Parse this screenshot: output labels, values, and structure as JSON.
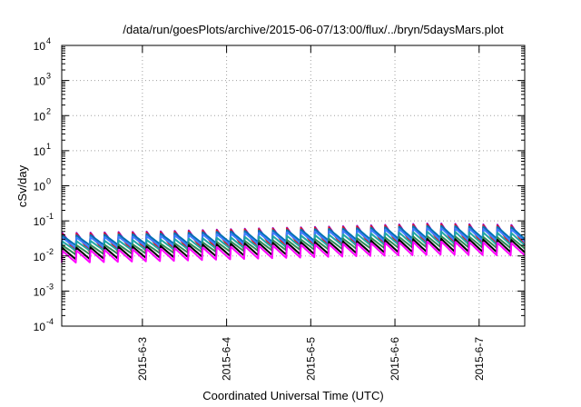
{
  "chart_data": {
    "type": "line",
    "title": "/data/run/goesPlots/archive/2015-06-07/13:00/flux/../bryn/5daysMars.plot",
    "xlabel": "Coordinated Universal Time (UTC)",
    "ylabel": "cSv/day",
    "yscale": "log",
    "ylim": [
      0.0001,
      10000
    ],
    "xlim": [
      "2015-06-02 01:00",
      "2015-06-07 13:00"
    ],
    "grid": true,
    "legend": "none",
    "y_ticks": [
      {
        "base": "10",
        "exp": "-4"
      },
      {
        "base": "10",
        "exp": "-3"
      },
      {
        "base": "10",
        "exp": "-2"
      },
      {
        "base": "10",
        "exp": "-1"
      },
      {
        "base": "10",
        "exp": "0"
      },
      {
        "base": "10",
        "exp": "1"
      },
      {
        "base": "10",
        "exp": "2"
      },
      {
        "base": "10",
        "exp": "3"
      },
      {
        "base": "10",
        "exp": "4"
      }
    ],
    "x_ticks": [
      {
        "label": "2015-6-3",
        "value": "2015-06-03 00:00"
      },
      {
        "label": "2015-6-4",
        "value": "2015-06-04 00:00"
      },
      {
        "label": "2015-6-5",
        "value": "2015-06-05 00:00"
      },
      {
        "label": "2015-6-6",
        "value": "2015-06-06 00:00"
      },
      {
        "label": "2015-6-7",
        "value": "2015-06-07 00:00"
      }
    ],
    "cycle_hours": 4,
    "series": [
      {
        "color": "#9400d3",
        "peak": [
          0.045,
          0.05,
          0.06,
          0.07,
          0.085,
          0.075
        ],
        "trough": [
          0.014,
          0.015,
          0.017,
          0.02,
          0.022,
          0.02
        ]
      },
      {
        "color": "#e51e10",
        "peak": [
          0.042,
          0.047,
          0.057,
          0.066,
          0.08,
          0.07
        ],
        "trough": [
          0.013,
          0.014,
          0.016,
          0.019,
          0.021,
          0.019
        ]
      },
      {
        "color": "#0072b2",
        "peak": [
          0.038,
          0.043,
          0.052,
          0.06,
          0.073,
          0.065
        ],
        "trough": [
          0.02,
          0.022,
          0.025,
          0.029,
          0.033,
          0.03
        ]
      },
      {
        "color": "#3d7cff",
        "peak": [
          0.033,
          0.037,
          0.045,
          0.052,
          0.063,
          0.056
        ],
        "trough": [
          0.017,
          0.019,
          0.022,
          0.025,
          0.028,
          0.026
        ]
      },
      {
        "color": "#1fa6a6",
        "peak": [
          0.026,
          0.029,
          0.035,
          0.041,
          0.05,
          0.044
        ],
        "trough": [
          0.014,
          0.015,
          0.017,
          0.02,
          0.022,
          0.02
        ]
      },
      {
        "color": "#2e8b57",
        "peak": [
          0.02,
          0.022,
          0.027,
          0.031,
          0.037,
          0.033
        ],
        "trough": [
          0.011,
          0.012,
          0.014,
          0.016,
          0.018,
          0.016
        ]
      },
      {
        "color": "#000000",
        "peak": [
          0.017,
          0.019,
          0.023,
          0.026,
          0.031,
          0.028
        ],
        "trough": [
          0.008,
          0.009,
          0.0105,
          0.012,
          0.0135,
          0.0125
        ]
      },
      {
        "color": "#ff00ff",
        "peak": [
          0.014,
          0.016,
          0.019,
          0.022,
          0.026,
          0.023
        ],
        "trough": [
          0.0065,
          0.0072,
          0.0085,
          0.0098,
          0.011,
          0.0102
        ]
      }
    ]
  }
}
